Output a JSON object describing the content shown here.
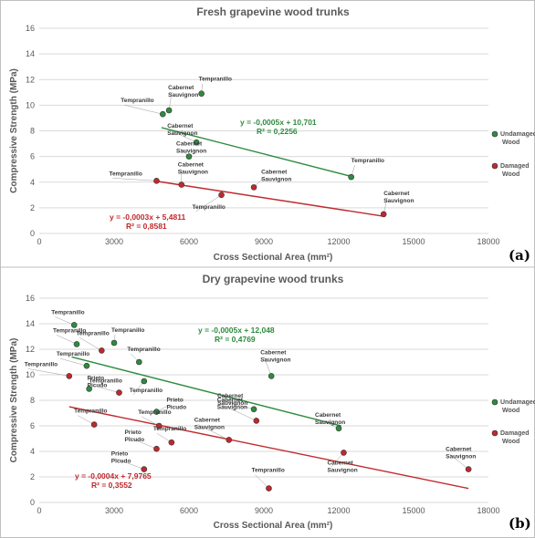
{
  "chart_data": [
    {
      "type": "scatter",
      "title": "Fresh grapevine wood trunks",
      "xlabel": "Cross Sectional Area (mm²)",
      "ylabel": "Compressive Strength (MPa)",
      "xlim": [
        0,
        18000
      ],
      "ylim": [
        0,
        16
      ],
      "xticks": [
        "0",
        "3000",
        "6000",
        "9000",
        "12000",
        "15000",
        "18000"
      ],
      "yticks": [
        "0",
        "2",
        "4",
        "6",
        "8",
        "10",
        "12",
        "14",
        "16"
      ],
      "grid": "horizontal",
      "panel_tag": "(a)",
      "series": [
        {
          "name": "Undamaged Wood",
          "color": "#2e8b3e",
          "points": [
            {
              "x": 6500,
              "y": 10.9,
              "label": "Tempranillo"
            },
            {
              "x": 5200,
              "y": 9.6,
              "label": "Cabernet Sauvignon"
            },
            {
              "x": 4950,
              "y": 9.3,
              "label": "Tempranillo"
            },
            {
              "x": 6300,
              "y": 7.1,
              "label": "Cabernet Sauvignon"
            },
            {
              "x": 6000,
              "y": 6.0,
              "label": "Cabernet Sauvignon"
            },
            {
              "x": 12500,
              "y": 4.4,
              "label": "Tempranillo"
            }
          ],
          "trend": {
            "equation": "y = -0,0005x + 10,701",
            "r2": "R² = 0,2256",
            "x_range": [
              4900,
              12500
            ],
            "slope": -0.0005,
            "intercept": 10.701
          }
        },
        {
          "name": "Damaged Wood",
          "color": "#c0282d",
          "points": [
            {
              "x": 4700,
              "y": 4.1,
              "label": "Tempranillo"
            },
            {
              "x": 5700,
              "y": 3.8,
              "label": "Cabernet Sauvignon"
            },
            {
              "x": 7300,
              "y": 3.0,
              "label": "Tempranillo"
            },
            {
              "x": 8600,
              "y": 3.6,
              "label": "Cabernet Sauvignon"
            },
            {
              "x": 13800,
              "y": 1.5,
              "label": "Cabernet Sauvignon"
            }
          ],
          "trend": {
            "equation": "y = -0,0003x + 5,4811",
            "r2": "R² = 0,8581",
            "x_range": [
              4700,
              13800
            ],
            "slope": -0.0003,
            "intercept": 5.4811
          }
        }
      ]
    },
    {
      "type": "scatter",
      "title": "Dry grapevine wood trunks",
      "xlabel": "Cross Sectional Area (mm²)",
      "ylabel": "Compressive Strength (MPa)",
      "xlim": [
        0,
        18000
      ],
      "ylim": [
        0,
        16
      ],
      "xticks": [
        "0",
        "3000",
        "6000",
        "9000",
        "12000",
        "15000",
        "18000"
      ],
      "yticks": [
        "0",
        "2",
        "4",
        "6",
        "8",
        "10",
        "12",
        "14",
        "16"
      ],
      "grid": "horizontal",
      "panel_tag": "(b)",
      "series": [
        {
          "name": "Undamaged Wood",
          "color": "#2e8b3e",
          "points": [
            {
              "x": 1400,
              "y": 13.9,
              "label": "Tempranillo"
            },
            {
              "x": 1500,
              "y": 12.4,
              "label": "Tempranillo"
            },
            {
              "x": 3000,
              "y": 12.5,
              "label": "Tempranillo"
            },
            {
              "x": 1900,
              "y": 10.7,
              "label": "Tempranillo"
            },
            {
              "x": 4000,
              "y": 11.0,
              "label": "Tempranillo"
            },
            {
              "x": 2000,
              "y": 8.9,
              "label": "Prieto Picudo"
            },
            {
              "x": 4200,
              "y": 9.5,
              "label": "Tempranillo"
            },
            {
              "x": 9300,
              "y": 9.9,
              "label": "Cabernet Sauvignon"
            },
            {
              "x": 4700,
              "y": 7.1,
              "label": "Prieto Picudo"
            },
            {
              "x": 8600,
              "y": 7.3,
              "label": "Cabernet Sauvignon"
            },
            {
              "x": 12000,
              "y": 5.8,
              "label": "Cabernet Sauvignon"
            }
          ],
          "trend": {
            "equation": "y = -0,0005x + 12,048",
            "r2": "R² = 0,4769",
            "x_range": [
              1300,
              12100
            ],
            "slope": -0.0005,
            "intercept": 12.048
          }
        },
        {
          "name": "Damaged Wood",
          "color": "#c0282d",
          "points": [
            {
              "x": 2500,
              "y": 11.9,
              "label": "Tempranillo"
            },
            {
              "x": 1200,
              "y": 9.9,
              "label": "Tempranillo"
            },
            {
              "x": 3200,
              "y": 8.6,
              "label": "Tempranillo"
            },
            {
              "x": 2200,
              "y": 6.1,
              "label": "Tempranillo"
            },
            {
              "x": 4800,
              "y": 6.0,
              "label": "Tempranillo"
            },
            {
              "x": 8700,
              "y": 6.4,
              "label": "Cabernet Sauvignon"
            },
            {
              "x": 7600,
              "y": 4.9,
              "label": "Cabernet Sauvignon"
            },
            {
              "x": 5300,
              "y": 4.7,
              "label": "Tempranillo"
            },
            {
              "x": 4700,
              "y": 4.2,
              "label": "Prieto Picudo"
            },
            {
              "x": 4200,
              "y": 2.6,
              "label": "Prieto Picudo"
            },
            {
              "x": 12200,
              "y": 3.9,
              "label": "Cabernet Sauvignon"
            },
            {
              "x": 9200,
              "y": 1.1,
              "label": "Tempranillo"
            },
            {
              "x": 17200,
              "y": 2.6,
              "label": "Cabernet Sauvignon"
            }
          ],
          "trend": {
            "equation": "y = -0,0004x + 7,9765",
            "r2": "R² = 0,3552",
            "x_range": [
              1200,
              17200
            ],
            "slope": -0.0004,
            "intercept": 7.9765
          }
        }
      ]
    }
  ],
  "legend": {
    "undamaged": "Undamaged Wood",
    "damaged": "Damaged Wood"
  }
}
